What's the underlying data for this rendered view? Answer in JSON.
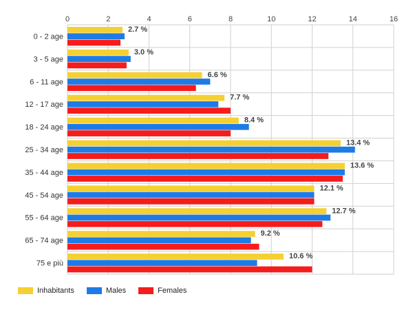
{
  "chart_data": {
    "type": "bar",
    "orientation": "horizontal",
    "categories": [
      "0 - 2 age",
      "3 - 5 age",
      "6 - 11 age",
      "12 - 17 age",
      "18 - 24 age",
      "25 - 34 age",
      "35 - 44 age",
      "45 - 54 age",
      "55 - 64 age",
      "65 - 74 age",
      "75 e più"
    ],
    "series": [
      {
        "name": "Inhabitants",
        "color": "#f5d033",
        "values": [
          2.7,
          3.0,
          6.6,
          7.7,
          8.4,
          13.4,
          13.6,
          12.1,
          12.7,
          9.2,
          10.6
        ]
      },
      {
        "name": "Males",
        "color": "#1e7be6",
        "values": [
          2.8,
          3.1,
          7.0,
          7.4,
          8.9,
          14.1,
          13.6,
          12.1,
          12.9,
          9.0,
          9.3
        ]
      },
      {
        "name": "Females",
        "color": "#f51c1c",
        "values": [
          2.6,
          2.9,
          6.3,
          8.0,
          8.0,
          12.8,
          13.5,
          12.1,
          12.5,
          9.4,
          12.0
        ]
      }
    ],
    "data_labels": [
      "2.7 %",
      "3.0 %",
      "6.6 %",
      "7.7 %",
      "8.4 %",
      "13.4 %",
      "13.6 %",
      "12.1 %",
      "12.7 %",
      "9.2 %",
      "10.6 %"
    ],
    "xlim": [
      0,
      16
    ],
    "x_ticks": [
      0,
      2,
      4,
      6,
      8,
      10,
      12,
      14,
      16
    ],
    "grid": true,
    "legend_position": "bottom-left",
    "title": "",
    "xlabel": "",
    "ylabel": ""
  }
}
